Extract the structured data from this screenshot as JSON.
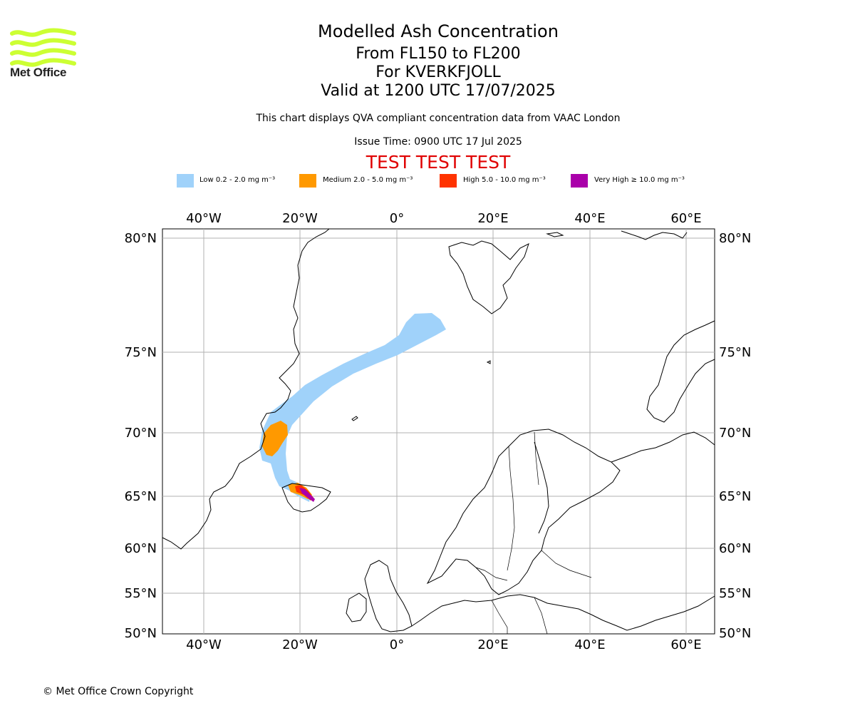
{
  "logo": {
    "text": "Met Office",
    "brand_color": "#ccff33"
  },
  "title": {
    "line1": "Modelled Ash Concentration",
    "line2": "From FL150 to FL200",
    "line3": "For KVERKFJOLL",
    "line4": "Valid at 1200 UTC 17/07/2025"
  },
  "subtitle": "This chart displays QVA compliant concentration data from VAAC London",
  "issue_time": "Issue Time: 0900 UTC 17 Jul 2025",
  "test_banner": "TEST TEST TEST",
  "legend": [
    {
      "label": "Low 0.2 - 2.0 mg m⁻³",
      "color": "#a0d2fa"
    },
    {
      "label": "Medium 2.0 - 5.0 mg m⁻³",
      "color": "#ff9900"
    },
    {
      "label": "High 5.0 - 10.0 mg m⁻³",
      "color": "#ff3300"
    },
    {
      "label": "Very High ≥ 10.0 mg m⁻³",
      "color": "#aa00aa"
    }
  ],
  "axes": {
    "lon_ticks": [
      "40°W",
      "20°W",
      "0°",
      "20°E",
      "40°E",
      "60°E"
    ],
    "lat_ticks": [
      "80°N",
      "75°N",
      "70°N",
      "65°N",
      "60°N",
      "55°N",
      "50°N"
    ],
    "grid": true
  },
  "copyright": "© Met Office Crown Copyright"
}
